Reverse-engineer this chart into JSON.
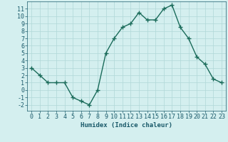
{
  "x": [
    0,
    1,
    2,
    3,
    4,
    5,
    6,
    7,
    8,
    9,
    10,
    11,
    12,
    13,
    14,
    15,
    16,
    17,
    18,
    19,
    20,
    21,
    22,
    23
  ],
  "y": [
    3,
    2,
    1,
    1,
    1,
    -1,
    -1.5,
    -2,
    0,
    5,
    7,
    8.5,
    9,
    10.5,
    9.5,
    9.5,
    11,
    11.5,
    8.5,
    7,
    4.5,
    3.5,
    1.5,
    1
  ],
  "line_color": "#1a6b5a",
  "marker": "+",
  "marker_size": 4,
  "marker_lw": 1.0,
  "line_width": 1.0,
  "bg_color": "#d4efef",
  "grid_color": "#b0d8d8",
  "xlabel": "Humidex (Indice chaleur)",
  "ylim": [
    -2.8,
    12
  ],
  "xlim": [
    -0.5,
    23.5
  ],
  "yticks": [
    -2,
    -1,
    0,
    1,
    2,
    3,
    4,
    5,
    6,
    7,
    8,
    9,
    10,
    11
  ],
  "xticks": [
    0,
    1,
    2,
    3,
    4,
    5,
    6,
    7,
    8,
    9,
    10,
    11,
    12,
    13,
    14,
    15,
    16,
    17,
    18,
    19,
    20,
    21,
    22,
    23
  ],
  "font_color": "#1a5a6a",
  "label_fontsize": 6.5,
  "tick_fontsize": 6
}
